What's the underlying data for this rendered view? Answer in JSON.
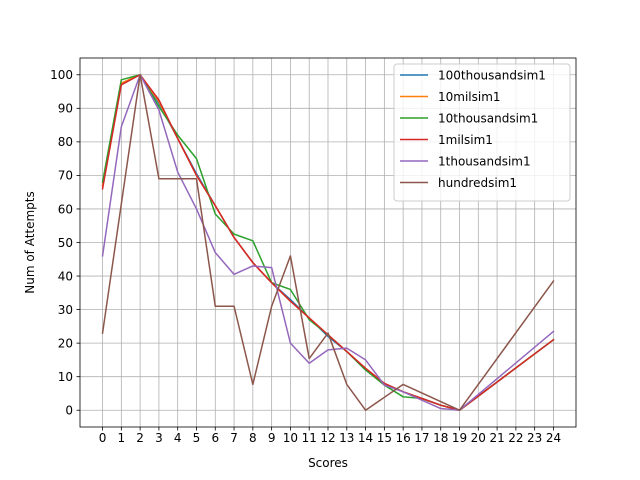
{
  "chart_data": {
    "type": "line",
    "title": "",
    "xlabel": "Scores",
    "ylabel": "Num of Attempts",
    "x": [
      0,
      1,
      2,
      3,
      4,
      5,
      6,
      7,
      8,
      9,
      10,
      11,
      12,
      13,
      14,
      15,
      16,
      17,
      18,
      19,
      20,
      21,
      22,
      23,
      24
    ],
    "xlim": [
      -1.2,
      25.2
    ],
    "ylim": [
      -5,
      105
    ],
    "xticks": [
      0,
      1,
      2,
      3,
      4,
      5,
      6,
      7,
      8,
      9,
      10,
      11,
      12,
      13,
      14,
      15,
      16,
      17,
      18,
      19,
      20,
      21,
      22,
      23,
      24
    ],
    "yticks": [
      0,
      10,
      20,
      30,
      40,
      50,
      60,
      70,
      80,
      90,
      100
    ],
    "grid": true,
    "legend_position": "top-right",
    "series": [
      {
        "name": "100thousandsim1",
        "color": "#1f77b4",
        "values": [
          67,
          97.5,
          100,
          91.5,
          81,
          70.5,
          61,
          51.5,
          44,
          38,
          33,
          27.5,
          22,
          17.5,
          12,
          8,
          5.5,
          3.5,
          1.5,
          0,
          null,
          null,
          null,
          null,
          21
        ]
      },
      {
        "name": "10milsim1",
        "color": "#ff7f0e",
        "values": [
          67,
          97.5,
          100,
          92,
          81,
          70,
          61,
          51.5,
          44,
          38,
          32.5,
          27.5,
          22.5,
          17.5,
          12.5,
          8,
          5.5,
          3.5,
          1.5,
          0,
          null,
          null,
          null,
          null,
          21
        ]
      },
      {
        "name": "10thousandsim1",
        "color": "#2ca02c",
        "values": [
          68,
          98.5,
          100,
          90.5,
          82,
          75,
          58.5,
          52.5,
          50.5,
          38,
          36,
          27,
          22.5,
          17.5,
          12,
          7.5,
          4,
          3.5,
          1.5,
          0,
          null,
          null,
          null,
          null,
          21
        ]
      },
      {
        "name": "1milsim1",
        "color": "#d62728",
        "values": [
          66,
          97,
          100,
          92.5,
          81,
          70,
          61,
          51.5,
          44,
          38,
          32.5,
          27.5,
          22.5,
          17.5,
          12.5,
          8,
          5.5,
          3.5,
          1.5,
          0,
          null,
          null,
          null,
          null,
          21
        ]
      },
      {
        "name": "1thousandsim1",
        "color": "#9467bd",
        "values": [
          46,
          84.5,
          100,
          89.5,
          71,
          60,
          47,
          40.5,
          43,
          42.5,
          20,
          14,
          18,
          18.5,
          15,
          7.5,
          5.5,
          3,
          0.5,
          0,
          null,
          null,
          null,
          null,
          23.5
        ]
      },
      {
        "name": "hundredsim1",
        "color": "#8c564b",
        "values": [
          23,
          null,
          100,
          69,
          69,
          69,
          31,
          31,
          7.7,
          31,
          46,
          15.4,
          23,
          7.7,
          0,
          null,
          7.7,
          null,
          null,
          0,
          null,
          null,
          null,
          null,
          38.5
        ]
      }
    ]
  }
}
